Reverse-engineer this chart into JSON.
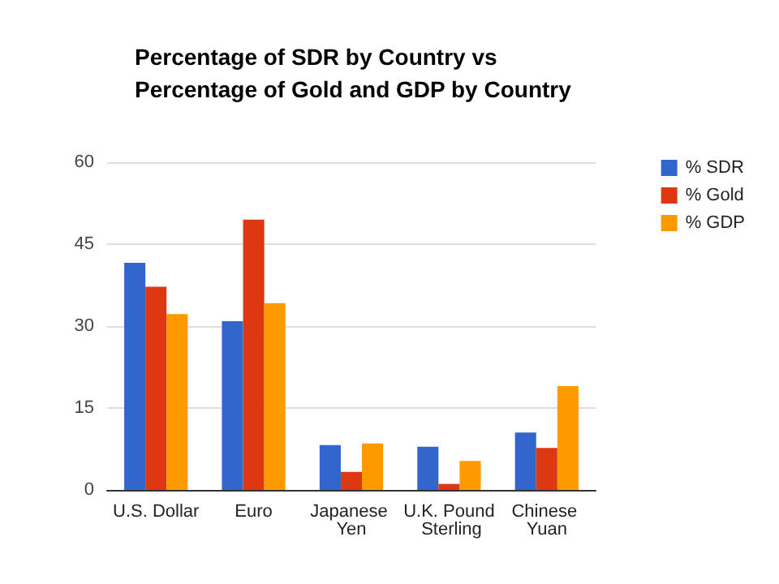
{
  "chart_data": {
    "type": "bar",
    "title": "Percentage of SDR by Country vs Percentage of Gold and GDP by Country",
    "categories": [
      "U.S. Dollar",
      "Euro",
      "Japanese Yen",
      "U.K. Pound Sterling",
      "Chinese Yuan"
    ],
    "series": [
      {
        "name": "% SDR",
        "color": "#3366cc",
        "values": [
          41.6,
          30.9,
          8.2,
          7.9,
          10.5
        ]
      },
      {
        "name": "% Gold",
        "color": "#dc3912",
        "values": [
          37.2,
          49.5,
          3.3,
          1.1,
          7.7
        ]
      },
      {
        "name": "% GDP",
        "color": "#ff9900",
        "values": [
          32.2,
          34.2,
          8.5,
          5.3,
          19.0
        ]
      }
    ],
    "ylim": [
      0,
      60
    ],
    "yticks": [
      0,
      15,
      30,
      45,
      60
    ],
    "grid": "y",
    "legend": "top right"
  }
}
